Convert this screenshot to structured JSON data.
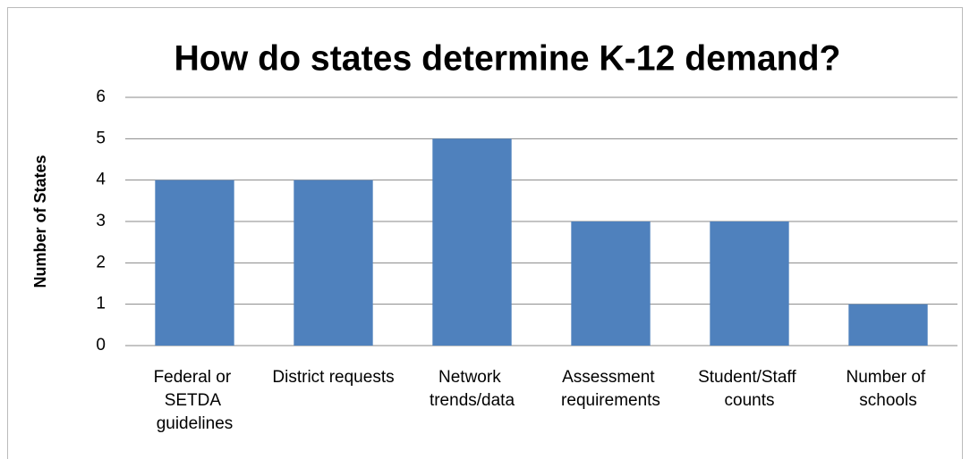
{
  "chart_data": {
    "type": "bar",
    "title": "How do states determine K-12 demand?",
    "y_label": "Number of States",
    "categories": [
      "Federal or SETDA guidelines",
      "District requests",
      "Network trends/data",
      "Assessment requirements",
      "Student/Staff counts",
      "Number of schools"
    ],
    "values": [
      4,
      4,
      5,
      3,
      3,
      1
    ],
    "color": "#4f81bd",
    "ylim": [
      0,
      6
    ],
    "yticks": [
      0,
      1,
      2,
      3,
      4,
      5,
      6
    ],
    "grid": true
  }
}
